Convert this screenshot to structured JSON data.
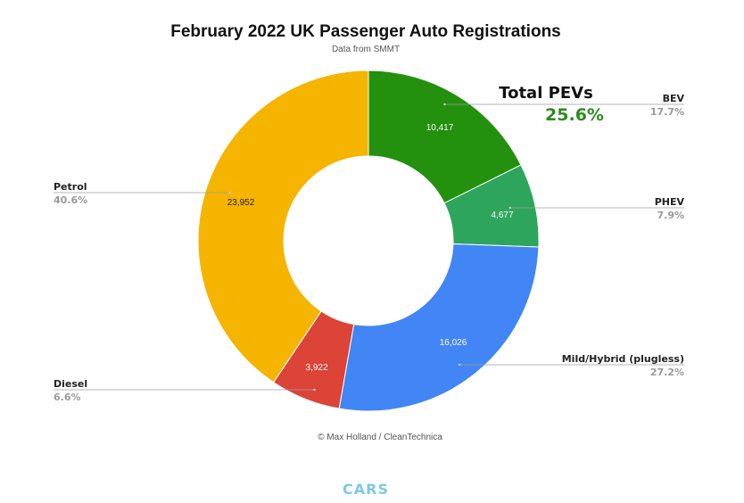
{
  "colors": {
    "petrol": "#F4B400",
    "bev": "#23900E",
    "phev": "#2EA55C",
    "mild_hybrid": "#4285F4",
    "diesel": "#DB4437",
    "total_pev_value": "#2E8B1E",
    "footer": "#7EC8E3"
  },
  "chart_data": {
    "type": "pie",
    "title": "February 2022 UK Passenger Auto Registrations",
    "subtitle": "Data from SMMT",
    "donut": true,
    "slices": [
      {
        "label": "BEV",
        "value": 10417,
        "value_label": "10,417",
        "percent_label": "17.7%",
        "color": "#23900E"
      },
      {
        "label": "PHEV",
        "value": 4677,
        "value_label": "4,677",
        "percent_label": "7.9%",
        "color": "#2EA55C"
      },
      {
        "label": "Mild/Hybrid (plugless)",
        "value": 16026,
        "value_label": "16,026",
        "percent_label": "27.2%",
        "color": "#4285F4"
      },
      {
        "label": "Diesel",
        "value": 3922,
        "value_label": "3,922",
        "percent_label": "6.6%",
        "color": "#DB4437"
      },
      {
        "label": "Petrol",
        "value": 23952,
        "value_label": "23,952",
        "percent_label": "40.6%",
        "color": "#F4B400"
      }
    ],
    "annotation": {
      "title": "Total PEVs",
      "value": "25.6%"
    },
    "credit": "© Max Holland / CleanTechnica"
  },
  "footer": {
    "label": "CARS"
  }
}
